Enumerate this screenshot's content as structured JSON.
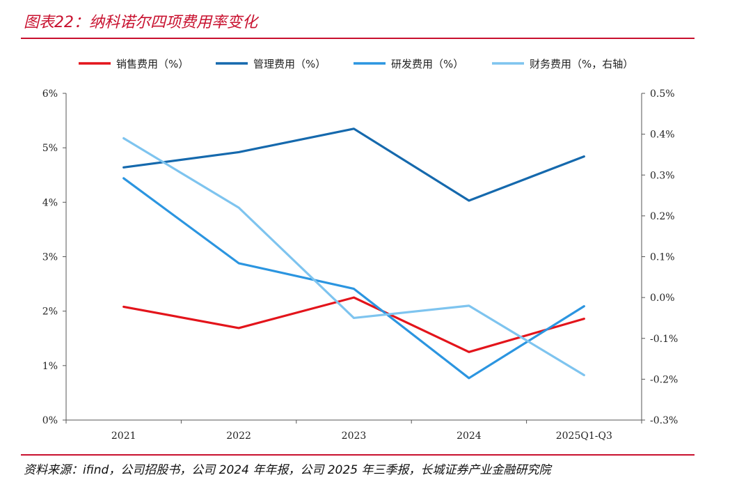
{
  "header": {
    "title": "图表22：纳科诺尔四项费用率变化"
  },
  "footer": {
    "source": "资料来源：ifind，公司招股书，公司 2024 年年报，公司 2025 年三季报，长城证券产业金融研究院"
  },
  "chart_data": {
    "type": "line",
    "categories": [
      "2021",
      "2022",
      "2023",
      "2024",
      "2025Q1-Q3"
    ],
    "y_left": {
      "ylim": [
        0,
        6
      ],
      "ticks": [
        0,
        1,
        2,
        3,
        4,
        5,
        6
      ],
      "tick_labels": [
        "0%",
        "1%",
        "2%",
        "3%",
        "4%",
        "5%",
        "6%"
      ]
    },
    "y_right": {
      "ylim": [
        -0.3,
        0.5
      ],
      "ticks": [
        -0.3,
        -0.2,
        -0.1,
        0.0,
        0.1,
        0.2,
        0.3,
        0.4,
        0.5
      ],
      "tick_labels": [
        "-0.3%",
        "-0.2%",
        "-0.1%",
        "0.0%",
        "0.1%",
        "0.2%",
        "0.3%",
        "0.4%",
        "0.5%"
      ]
    },
    "legend_position": "top",
    "grid": false,
    "series": [
      {
        "name": "销售费用（%）",
        "axis": "left",
        "color": "#e3141b",
        "values": [
          2.08,
          1.69,
          2.25,
          1.25,
          1.86
        ]
      },
      {
        "name": "管理费用（%）",
        "axis": "left",
        "color": "#1569ad",
        "values": [
          4.64,
          4.92,
          5.35,
          4.03,
          4.84
        ]
      },
      {
        "name": "研发费用（%）",
        "axis": "left",
        "color": "#2b95e0",
        "values": [
          4.44,
          2.88,
          2.41,
          0.77,
          2.09
        ]
      },
      {
        "name": "财务费用（%，右轴）",
        "axis": "right",
        "color": "#7ec4ef",
        "values": [
          0.39,
          0.22,
          -0.05,
          -0.02,
          -0.19
        ]
      }
    ]
  }
}
